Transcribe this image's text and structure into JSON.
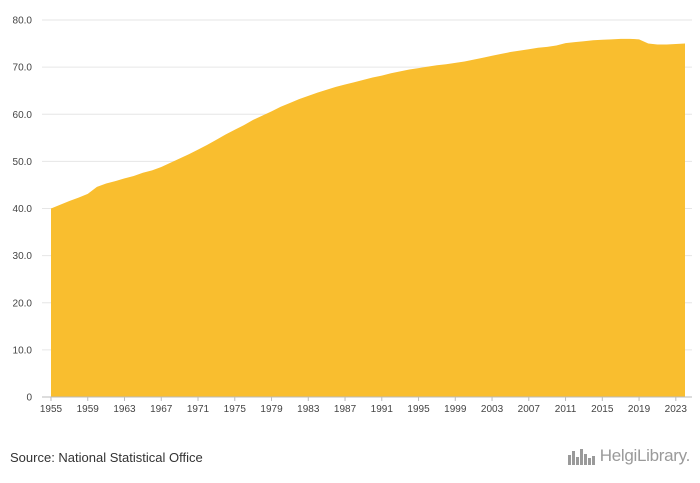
{
  "source": "Source: National Statistical Office",
  "logo": {
    "text": "HelgiLibrary.",
    "icon": "city-skyline-icon"
  },
  "colors": {
    "area": "#f9be2f",
    "grid": "#e6e6e6",
    "axis": "#bbbbbb"
  },
  "chart_data": {
    "type": "area",
    "title": "",
    "xlabel": "",
    "ylabel": "",
    "ylim": [
      0,
      80
    ],
    "xlim": [
      1955,
      2024
    ],
    "grid": true,
    "y_ticks": [
      "0",
      "10.0",
      "20.0",
      "30.0",
      "40.0",
      "50.0",
      "60.0",
      "70.0",
      "80.0"
    ],
    "x_ticks": [
      "1955",
      "1959",
      "1963",
      "1967",
      "1971",
      "1975",
      "1979",
      "1983",
      "1987",
      "1991",
      "1995",
      "1999",
      "2003",
      "2007",
      "2011",
      "2015",
      "2019",
      "2023"
    ],
    "x": [
      1955,
      1956,
      1957,
      1958,
      1959,
      1960,
      1961,
      1962,
      1963,
      1964,
      1965,
      1966,
      1967,
      1968,
      1969,
      1970,
      1971,
      1972,
      1973,
      1974,
      1975,
      1976,
      1977,
      1978,
      1979,
      1980,
      1981,
      1982,
      1983,
      1984,
      1985,
      1986,
      1987,
      1988,
      1989,
      1990,
      1991,
      1992,
      1993,
      1994,
      1995,
      1996,
      1997,
      1998,
      1999,
      2000,
      2001,
      2002,
      2003,
      2004,
      2005,
      2006,
      2007,
      2008,
      2009,
      2010,
      2011,
      2012,
      2013,
      2014,
      2015,
      2016,
      2017,
      2018,
      2019,
      2020,
      2021,
      2022,
      2023,
      2024
    ],
    "series": [
      {
        "values": [
          40.0,
          40.8,
          41.6,
          42.3,
          43.1,
          44.6,
          45.3,
          45.8,
          46.4,
          46.9,
          47.6,
          48.1,
          48.8,
          49.7,
          50.6,
          51.5,
          52.5,
          53.5,
          54.6,
          55.7,
          56.7,
          57.7,
          58.8,
          59.7,
          60.6,
          61.6,
          62.4,
          63.2,
          63.9,
          64.6,
          65.2,
          65.8,
          66.3,
          66.8,
          67.3,
          67.8,
          68.2,
          68.7,
          69.1,
          69.5,
          69.8,
          70.1,
          70.4,
          70.6,
          70.9,
          71.2,
          71.6,
          72.0,
          72.4,
          72.8,
          73.2,
          73.5,
          73.8,
          74.1,
          74.3,
          74.6,
          75.1,
          75.3,
          75.5,
          75.7,
          75.8,
          75.9,
          76.0,
          76.0,
          75.9,
          75.0,
          74.8,
          74.8,
          74.9,
          75.0
        ]
      }
    ]
  }
}
